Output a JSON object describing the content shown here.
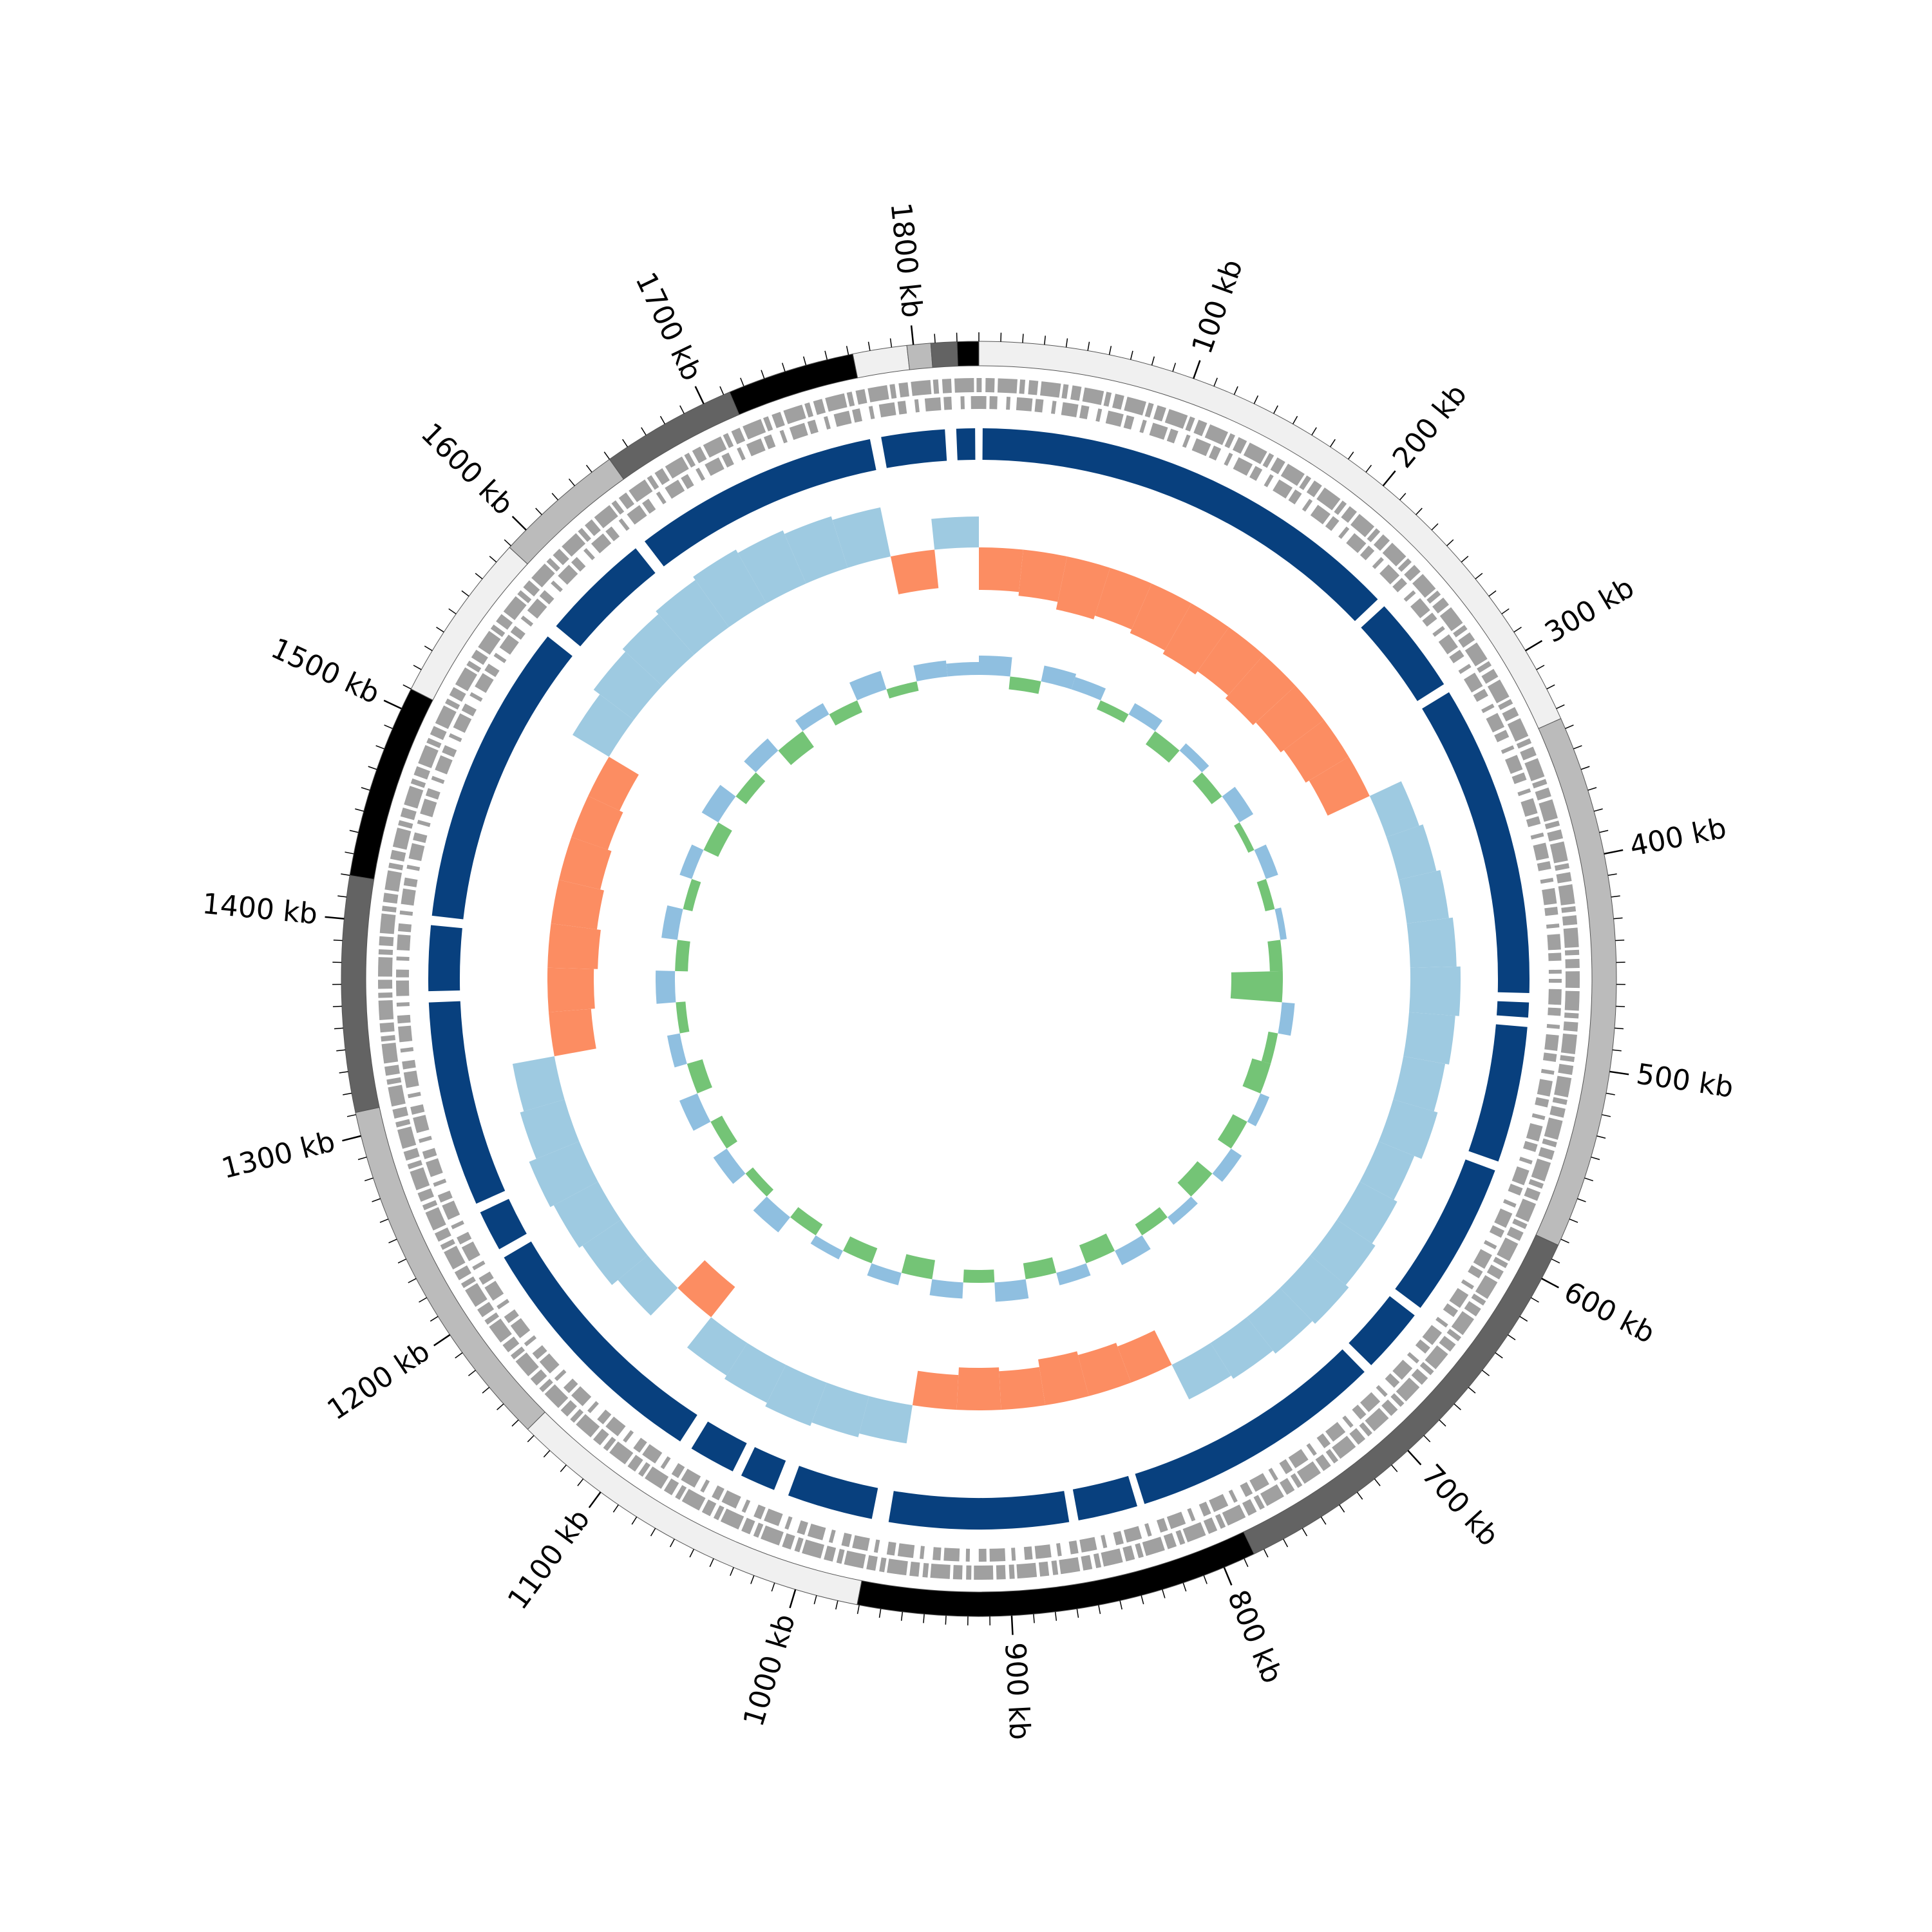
{
  "chart_data": {
    "type": "circular",
    "xlim": [
      0,
      1830
    ],
    "xticks": [
      {
        "value": 100,
        "label": "100 kb"
      },
      {
        "value": 200,
        "label": "200 kb"
      },
      {
        "value": 300,
        "label": "300 kb"
      },
      {
        "value": 400,
        "label": "400 kb"
      },
      {
        "value": 500,
        "label": "500 kb"
      },
      {
        "value": 600,
        "label": "600 kb"
      },
      {
        "value": 700,
        "label": "700 kb"
      },
      {
        "value": 800,
        "label": "800 kb"
      },
      {
        "value": 900,
        "label": "900 kb"
      },
      {
        "value": 1000,
        "label": "1000 kb"
      },
      {
        "value": 1100,
        "label": "1100 kb"
      },
      {
        "value": 1200,
        "label": "1200 kb"
      },
      {
        "value": 1300,
        "label": "1300 kb"
      },
      {
        "value": 1400,
        "label": "1400 kb"
      },
      {
        "value": 1500,
        "label": "1500 kb"
      },
      {
        "value": 1600,
        "label": "1600 kb"
      },
      {
        "value": 1700,
        "label": "1700 kb"
      },
      {
        "value": 1800,
        "label": "1800 kb"
      }
    ],
    "minor_ticks": [
      0,
      10,
      20,
      30,
      40,
      50,
      60,
      70,
      80,
      90,
      100,
      110,
      120,
      130,
      140,
      150,
      160,
      170,
      180,
      190,
      200,
      210,
      220,
      230,
      240,
      250,
      260,
      270,
      280,
      290,
      300,
      310,
      320,
      330,
      340,
      350,
      360,
      370,
      380,
      390,
      400,
      410,
      420,
      430,
      440,
      450,
      460,
      470,
      480,
      490,
      500,
      510,
      520,
      530,
      540,
      550,
      560,
      570,
      580,
      590,
      600,
      610,
      620,
      630,
      640,
      650,
      660,
      670,
      680,
      690,
      700,
      710,
      720,
      730,
      740,
      750,
      760,
      770,
      780,
      790,
      800,
      810,
      820,
      830,
      840,
      850,
      860,
      870,
      880,
      890,
      900,
      910,
      920,
      930,
      940,
      950,
      960,
      970,
      980,
      990,
      1000,
      1010,
      1020,
      1030,
      1040,
      1050,
      1060,
      1070,
      1080,
      1090,
      1100,
      1110,
      1120,
      1130,
      1140,
      1150,
      1160,
      1170,
      1180,
      1190,
      1200,
      1210,
      1220,
      1230,
      1240,
      1250,
      1260,
      1270,
      1280,
      1290,
      1300,
      1310,
      1320,
      1330,
      1340,
      1350,
      1360,
      1370,
      1380,
      1390,
      1400,
      1410,
      1420,
      1430,
      1440,
      1450,
      1460,
      1470,
      1480,
      1490,
      1500,
      1510,
      1520,
      1530,
      1540,
      1550,
      1560,
      1570,
      1580,
      1590,
      1600,
      1610,
      1620,
      1630,
      1640,
      1650,
      1660,
      1670,
      1680,
      1690,
      1700,
      1710,
      1720,
      1730,
      1740,
      1750,
      1760,
      1770,
      1780,
      1790,
      1800,
      1810,
      1820
    ],
    "segments": [
      [
        0,
        335
      ],
      [
        335,
        583
      ],
      [
        583,
        785
      ],
      [
        785,
        971
      ],
      [
        971,
        1144
      ],
      [
        1144,
        1311
      ],
      [
        1311,
        1420
      ],
      [
        1420,
        1510
      ],
      [
        1510,
        1589
      ],
      [
        1589,
        1650
      ],
      [
        1650,
        1713
      ],
      [
        1713,
        1772
      ],
      [
        1772,
        1797
      ],
      [
        1797,
        1808
      ],
      [
        1808,
        1820
      ],
      [
        1820,
        1830
      ]
    ],
    "segment_colors": [
      "#f0f0f0",
      "#bbbbbb",
      "#636363",
      "#000000"
    ],
    "blocks": [
      [
        2,
        236
      ],
      [
        241,
        293
      ],
      [
        298,
        465
      ],
      [
        470,
        478
      ],
      [
        483,
        556
      ],
      [
        561,
        644
      ],
      [
        649,
        684
      ],
      [
        689,
        826
      ],
      [
        830,
        862
      ],
      [
        867,
        963
      ],
      [
        972,
        1018
      ],
      [
        1026,
        1045
      ],
      [
        1050,
        1075
      ],
      [
        1082,
        1218
      ],
      [
        1223,
        1245
      ],
      [
        1250,
        1360
      ],
      [
        1366,
        1401
      ],
      [
        1406,
        1568
      ],
      [
        1575,
        1634
      ],
      [
        1640,
        1772
      ],
      [
        1778,
        1812
      ],
      [
        1818,
        1828
      ]
    ],
    "block_color": "#08407e",
    "bins": [
      0,
      30,
      60,
      90,
      120,
      150,
      180,
      210,
      240,
      270,
      300,
      330,
      360,
      390,
      420,
      450,
      480,
      510,
      540,
      570,
      600,
      630,
      660,
      690,
      720,
      750,
      780,
      810,
      840,
      870,
      900,
      930,
      960,
      990,
      1020,
      1050,
      1080,
      1110,
      1140,
      1170,
      1200,
      1230,
      1260,
      1290,
      1320,
      1350,
      1380,
      1410,
      1440,
      1470,
      1500,
      1530,
      1560,
      1590,
      1620,
      1650,
      1680,
      1710,
      1740,
      1770,
      1800,
      1830
    ],
    "skew": [
      -0.55,
      -0.6,
      -0.7,
      -0.65,
      -0.7,
      -0.75,
      -0.7,
      -0.75,
      -0.7,
      -0.65,
      -0.6,
      0.45,
      0.5,
      0.55,
      0.6,
      0.65,
      0.6,
      0.55,
      0.6,
      0.5,
      0.55,
      0.6,
      0.65,
      0.6,
      0.55,
      0.5,
      -0.5,
      -0.55,
      -0.6,
      -0.5,
      -0.55,
      -0.45,
      0.5,
      0.55,
      0.6,
      0.55,
      0.5,
      -0.5,
      0.5,
      0.6,
      0.65,
      0.7,
      0.6,
      0.55,
      -0.55,
      -0.6,
      -0.65,
      -0.6,
      -0.55,
      -0.5,
      -0.45,
      0.55,
      0.65,
      0.7,
      0.75,
      0.8,
      0.75,
      0.7,
      0.65,
      -0.5,
      0.4
    ],
    "skew_colors": {
      "positive": "#9ecae1",
      "negative": "#fc8d62"
    },
    "gc": [
      0.3,
      -0.2,
      0.25,
      0.2,
      -0.15,
      0.2,
      -0.25,
      0.15,
      -0.2,
      0.25,
      -0.1,
      0.2,
      -0.15,
      0.1,
      -0.2,
      -0.8,
      0.2,
      -0.15,
      -0.3,
      0.15,
      -0.25,
      0.2,
      -0.3,
      0.15,
      -0.2,
      0.25,
      -0.3,
      0.2,
      -0.25,
      0.3,
      -0.2,
      0.25,
      -0.3,
      0.2,
      -0.25,
      0.15,
      -0.2,
      0.3,
      -0.15,
      0.25,
      -0.2,
      0.3,
      -0.25,
      0.2,
      -0.15,
      0.3,
      -0.2,
      0.25,
      -0.15,
      0.2,
      -0.25,
      0.3,
      -0.2,
      0.25,
      -0.3,
      0.2,
      -0.2,
      0.3,
      -0.15,
      0.25,
      0.2
    ],
    "gc_colors": {
      "positive": "#8fbfe0",
      "negative": "#74c476"
    }
  }
}
